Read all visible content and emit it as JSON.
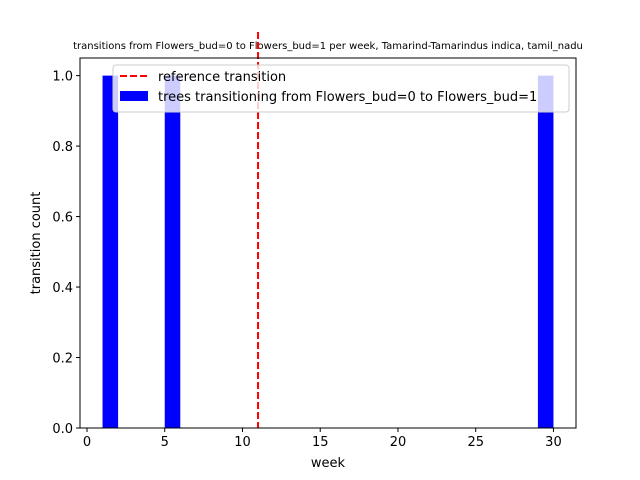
{
  "chart_data": {
    "type": "bar",
    "title": "transitions from Flowers_bud=0 to Flowers_bud=1 per week, Tamarind-Tamarindus indica, tamil_nadu",
    "xlabel": "week",
    "ylabel": "transition count",
    "xlim": [
      -0.45,
      31.45
    ],
    "ylim": [
      0,
      1.05
    ],
    "xticks": [
      0,
      5,
      10,
      15,
      20,
      25,
      30
    ],
    "yticks": [
      0.0,
      0.2,
      0.4,
      0.6,
      0.8,
      1.0
    ],
    "xtick_labels": [
      "0",
      "5",
      "10",
      "15",
      "20",
      "25",
      "30"
    ],
    "ytick_labels": [
      "0.0",
      "0.2",
      "0.4",
      "0.6",
      "0.8",
      "1.0"
    ],
    "bars": [
      {
        "x_start": 1,
        "x_end": 2,
        "value": 1
      },
      {
        "x_start": 5,
        "x_end": 6,
        "value": 1
      },
      {
        "x_start": 29,
        "x_end": 30,
        "value": 1
      }
    ],
    "reference_line": {
      "x": 11,
      "name": "reference transition",
      "color": "#ff0000",
      "style": "dashed"
    },
    "bar_series": {
      "name": "trees transitioning from Flowers_bud=0 to Flowers_bud=1",
      "color": "#0000ff"
    },
    "legend_position": "top-right",
    "grid": false
  }
}
